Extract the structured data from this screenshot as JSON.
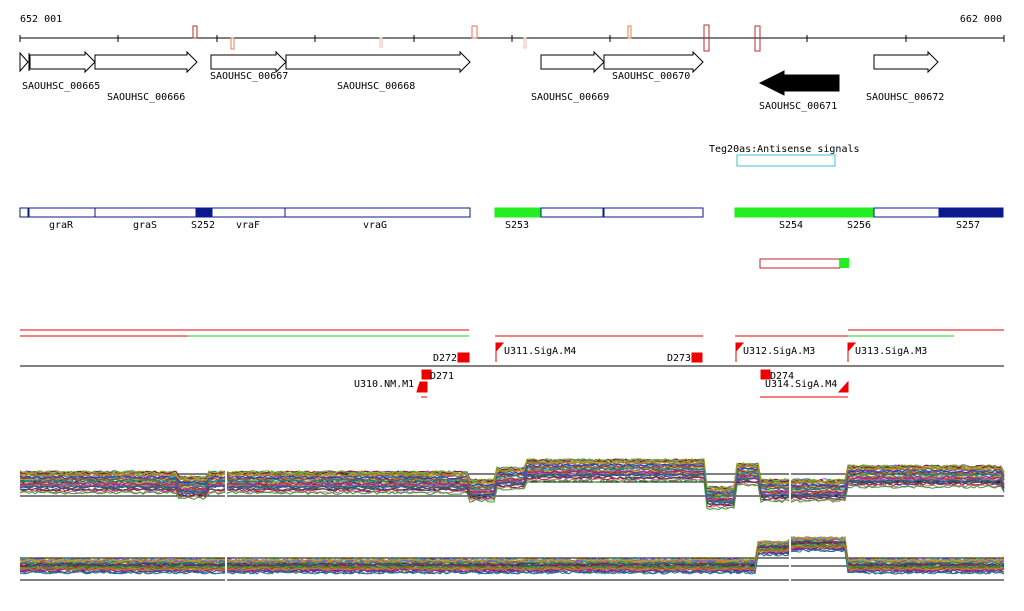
{
  "ruler": {
    "start_label": "652 001",
    "end_label": "662 000"
  },
  "genes": [
    {
      "id": "SAOUHSC_00665",
      "strand": "+"
    },
    {
      "id": "SAOUHSC_00666",
      "strand": "+"
    },
    {
      "id": "SAOUHSC_00667",
      "strand": "+"
    },
    {
      "id": "SAOUHSC_00668",
      "strand": "+"
    },
    {
      "id": "SAOUHSC_00669",
      "strand": "+"
    },
    {
      "id": "SAOUHSC_00670",
      "strand": "+"
    },
    {
      "id": "SAOUHSC_00671",
      "strand": "-",
      "highlighted": true
    },
    {
      "id": "SAOUHSC_00672",
      "strand": "+"
    }
  ],
  "antisense_track": {
    "label": "Teg20as:Antisense signals",
    "color": "#40c0d0"
  },
  "segments": [
    {
      "label": "graR",
      "style": "outline"
    },
    {
      "label": "graS",
      "style": "outline"
    },
    {
      "label": "S252",
      "style": "filled-blue"
    },
    {
      "label": "vraF",
      "style": "outline"
    },
    {
      "label": "vraG",
      "style": "outline"
    },
    {
      "label": "S253",
      "style": "filled-green"
    },
    {
      "label": "S254",
      "style": "filled-green"
    },
    {
      "label": "S256",
      "style": "outline"
    },
    {
      "label": "S257",
      "style": "filled-blue"
    }
  ],
  "promoters": [
    {
      "label": "D272"
    },
    {
      "label": "D271"
    },
    {
      "label": "U310.NM.M1"
    },
    {
      "label": "U311.SigA.M4"
    },
    {
      "label": "D273"
    },
    {
      "label": "U312.SigA.M3"
    },
    {
      "label": "D274"
    },
    {
      "label": "U314.SigA.M4"
    },
    {
      "label": "U313.SigA.M3"
    }
  ],
  "colors": {
    "segment_blue": "#0a1a8c",
    "segment_green": "#22ee22",
    "promoter_red": "#ee0000",
    "gene_fill": "#000000"
  }
}
